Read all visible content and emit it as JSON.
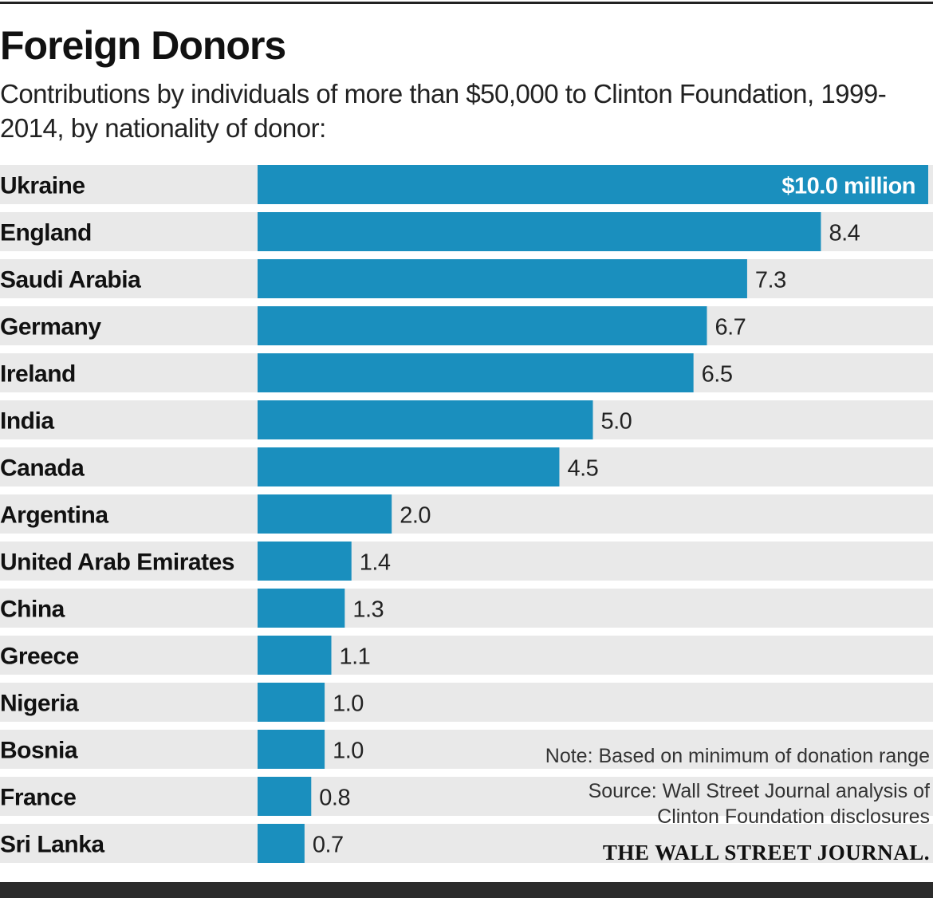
{
  "header": {
    "title": "Foreign Donors",
    "subtitle": "Contributions by individuals of more than $50,000 to Clinton Foundation, 1999-2014, by nationality of donor:"
  },
  "chart_data": {
    "type": "bar",
    "orientation": "horizontal",
    "categories": [
      "Ukraine",
      "England",
      "Saudi Arabia",
      "Germany",
      "Ireland",
      "India",
      "Canada",
      "Argentina",
      "United Arab Emirates",
      "China",
      "Greece",
      "Nigeria",
      "Bosnia",
      "France",
      "Sri Lanka"
    ],
    "values": [
      10.0,
      8.4,
      7.3,
      6.7,
      6.5,
      5.0,
      4.5,
      2.0,
      1.4,
      1.3,
      1.1,
      1.0,
      1.0,
      0.8,
      0.7
    ],
    "value_labels": [
      "$10.0 million",
      "8.4",
      "7.3",
      "6.7",
      "6.5",
      "5.0",
      "4.5",
      "2.0",
      "1.4",
      "1.3",
      "1.1",
      "1.0",
      "1.0",
      "0.8",
      "0.7"
    ],
    "unit": "million",
    "xlim": [
      0,
      10.0
    ],
    "grid": false,
    "bar_color": "#1a8fbe",
    "row_band_color": "#e9e9e9"
  },
  "footer": {
    "note": "Note: Based on minimum of donation range",
    "source_line1": "Source: Wall Street Journal analysis of",
    "source_line2": "Clinton Foundation disclosures",
    "logo_text": "THE WALL STREET JOURNAL."
  }
}
